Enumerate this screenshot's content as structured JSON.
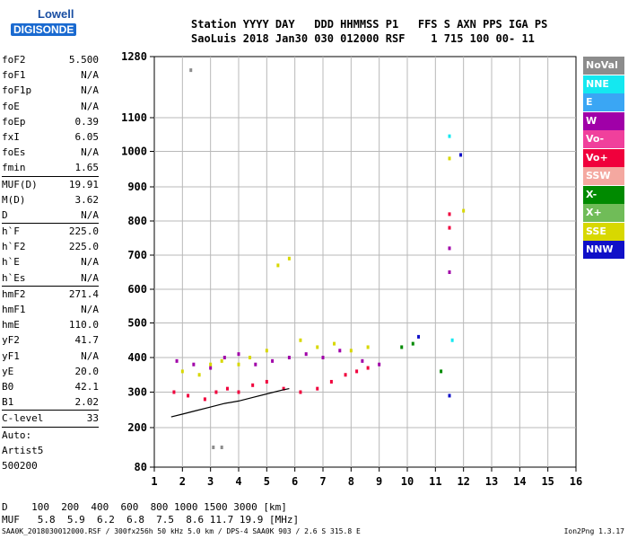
{
  "logo": {
    "top": "Lowell",
    "bottom": "DIGISONDE"
  },
  "header": {
    "line1": "Station YYYY DAY   DDD HHMMSS P1   FFS S AXN PPS IGA PS",
    "line2": "SaoLuis 2018 Jan30 030 012000 RSF    1 715 100 00- 11"
  },
  "params": {
    "group1": [
      {
        "k": "foF2",
        "v": "5.500"
      },
      {
        "k": "foF1",
        "v": "N/A"
      },
      {
        "k": "foF1p",
        "v": "N/A"
      },
      {
        "k": "foE",
        "v": "N/A"
      },
      {
        "k": "foEp",
        "v": "0.39"
      },
      {
        "k": "fxI",
        "v": "6.05"
      },
      {
        "k": "foEs",
        "v": "N/A"
      },
      {
        "k": "fmin",
        "v": "1.65"
      }
    ],
    "group2": [
      {
        "k": "MUF(D)",
        "v": "19.91"
      },
      {
        "k": "M(D)",
        "v": "3.62"
      },
      {
        "k": "D",
        "v": "N/A"
      }
    ],
    "group3": [
      {
        "k": "h`F",
        "v": "225.0"
      },
      {
        "k": "h`F2",
        "v": "225.0"
      },
      {
        "k": "h`E",
        "v": "N/A"
      },
      {
        "k": "h`Es",
        "v": "N/A"
      }
    ],
    "group4": [
      {
        "k": "hmF2",
        "v": "271.4"
      },
      {
        "k": "hmF1",
        "v": "N/A"
      },
      {
        "k": "hmE",
        "v": "110.0"
      },
      {
        "k": "yF2",
        "v": "41.7"
      },
      {
        "k": "yF1",
        "v": "N/A"
      },
      {
        "k": "yE",
        "v": "20.0"
      },
      {
        "k": "B0",
        "v": "42.1"
      },
      {
        "k": "B1",
        "v": "2.02"
      }
    ],
    "clevel": {
      "k": "C-level",
      "v": "33"
    },
    "auto": [
      "Auto:",
      "Artist5",
      "500200"
    ]
  },
  "legend": [
    {
      "label": "NoVal",
      "color": "#8c8c8c"
    },
    {
      "label": "NNE",
      "color": "#14e8f0"
    },
    {
      "label": "E",
      "color": "#3aa6f4"
    },
    {
      "label": "W",
      "color": "#a000a8"
    },
    {
      "label": "Vo-",
      "color": "#f0409c"
    },
    {
      "label": "Vo+",
      "color": "#f0003c"
    },
    {
      "label": "SSW",
      "color": "#f4a8a0"
    },
    {
      "label": "X-",
      "color": "#008a00"
    },
    {
      "label": "X+",
      "color": "#70bc58"
    },
    {
      "label": "SSE",
      "color": "#d8d800"
    },
    {
      "label": "NNW",
      "color": "#1010c8"
    }
  ],
  "dmuf": {
    "d_line": "D    100  200  400  600  800 1000 1500 3000 [km]",
    "muf_line": "MUF   5.8  5.9  6.2  6.8  7.5  8.6 11.7 19.9 [MHz]"
  },
  "footer": {
    "left": "SAA0K_2018030012000.RSF / 300fx256h 50 kHz 5.0 km / DPS-4 SAA0K 903 / 2.6 S 315.8 E",
    "right": "Ion2Png 1.3.17"
  },
  "chart_data": {
    "type": "scatter",
    "title": "",
    "xlabel": "",
    "ylabel": "",
    "xlim": [
      1,
      16
    ],
    "ylim": [
      80,
      1280
    ],
    "x_ticks": [
      1,
      2,
      3,
      4,
      5,
      6,
      7,
      8,
      9,
      10,
      11,
      12,
      13,
      14,
      15,
      16
    ],
    "y_ticks": [
      80,
      200,
      300,
      400,
      500,
      600,
      700,
      800,
      900,
      1000,
      1100,
      1280
    ],
    "grid": true,
    "series": [
      {
        "name": "NoVal",
        "color": "#8c8c8c",
        "points": [
          [
            2.3,
            1240
          ],
          [
            3.1,
            140
          ],
          [
            3.4,
            140
          ]
        ]
      },
      {
        "name": "Vo+",
        "color": "#f0003c",
        "points": [
          [
            1.7,
            300
          ],
          [
            2.2,
            290
          ],
          [
            2.8,
            280
          ],
          [
            3.2,
            300
          ],
          [
            3.6,
            310
          ],
          [
            4.0,
            300
          ],
          [
            4.5,
            320
          ],
          [
            5.0,
            330
          ],
          [
            5.6,
            310
          ],
          [
            6.2,
            300
          ],
          [
            6.8,
            310
          ],
          [
            7.3,
            330
          ],
          [
            7.8,
            350
          ],
          [
            8.2,
            360
          ],
          [
            8.6,
            370
          ],
          [
            11.5,
            780
          ],
          [
            11.5,
            820
          ]
        ]
      },
      {
        "name": "W",
        "color": "#a000a8",
        "points": [
          [
            1.8,
            390
          ],
          [
            2.4,
            380
          ],
          [
            3.0,
            370
          ],
          [
            3.5,
            400
          ],
          [
            4.0,
            410
          ],
          [
            4.6,
            380
          ],
          [
            5.2,
            390
          ],
          [
            5.8,
            400
          ],
          [
            6.4,
            410
          ],
          [
            7.0,
            400
          ],
          [
            7.6,
            420
          ],
          [
            8.4,
            390
          ],
          [
            9.0,
            380
          ],
          [
            11.5,
            720
          ],
          [
            11.5,
            650
          ]
        ]
      },
      {
        "name": "SSE",
        "color": "#d8d800",
        "points": [
          [
            2.0,
            360
          ],
          [
            2.6,
            350
          ],
          [
            3.0,
            380
          ],
          [
            3.4,
            390
          ],
          [
            4.0,
            380
          ],
          [
            4.4,
            400
          ],
          [
            5.0,
            420
          ],
          [
            5.4,
            670
          ],
          [
            5.8,
            690
          ],
          [
            6.2,
            450
          ],
          [
            6.8,
            430
          ],
          [
            7.4,
            440
          ],
          [
            8.0,
            420
          ],
          [
            8.6,
            430
          ],
          [
            11.5,
            980
          ],
          [
            12.0,
            830
          ]
        ]
      },
      {
        "name": "NNW",
        "color": "#1010c8",
        "points": [
          [
            11.9,
            990
          ],
          [
            11.5,
            290
          ],
          [
            10.4,
            460
          ]
        ]
      },
      {
        "name": "X-",
        "color": "#008a00",
        "points": [
          [
            9.8,
            430
          ],
          [
            10.2,
            440
          ],
          [
            11.2,
            360
          ]
        ]
      },
      {
        "name": "NNE",
        "color": "#14e8f0",
        "points": [
          [
            11.5,
            1045
          ],
          [
            11.6,
            450
          ]
        ]
      }
    ],
    "trace": {
      "name": "",
      "color": "#000000",
      "points": [
        [
          1.6,
          230
        ],
        [
          2.0,
          238
        ],
        [
          2.5,
          248
        ],
        [
          3.0,
          258
        ],
        [
          3.5,
          268
        ],
        [
          4.0,
          275
        ],
        [
          4.5,
          285
        ],
        [
          5.0,
          295
        ],
        [
          5.5,
          305
        ],
        [
          5.8,
          310
        ]
      ]
    }
  }
}
